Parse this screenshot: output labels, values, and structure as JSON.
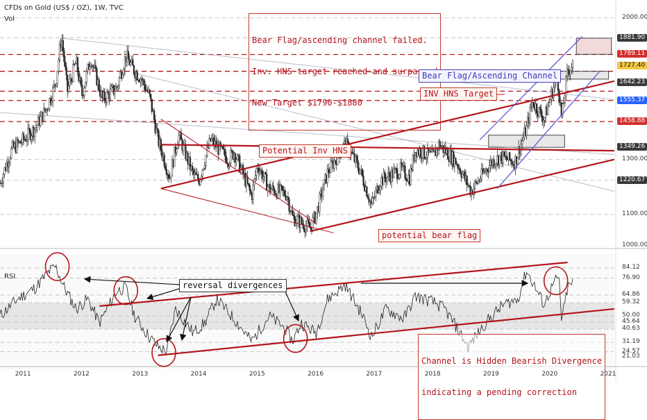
{
  "header": {
    "title": "CFDs on Gold (US$ / OZ), 1W, TVC",
    "vol_label": "Vol",
    "rsi_label": "RSI"
  },
  "colors": {
    "candle": "#2b2b2b",
    "trend": "#b3141b",
    "blue_channel": "#5a5ad6",
    "red_badge": "#d32f2f",
    "blue_badge": "#2962ff",
    "yellow_badge": "#f5c842",
    "grey_badge": "#3a3a3a"
  },
  "annotations": {
    "bear_flag_failed": [
      "Bear Flag/ascending channel failed.",
      "Inv. HNS target reached and surpassed",
      "New Target $1790-$1880"
    ],
    "bear_flag_channel": "Bear Flag/Ascending Channel",
    "inv_hns_target": "INV HNS Target",
    "potential_inv_hns": "Potential Inv HNS",
    "potential_bear_flag": "potential bear flag",
    "reversal_divergences": "reversal divergences",
    "hidden_bearish": [
      "Channel is Hidden Bearish Divergence",
      "indicating a pending correction"
    ]
  },
  "chart_data": [
    {
      "type": "candlestick",
      "title": "CFDs on Gold (US$ / OZ), 1W, TVC",
      "x_range": [
        2010.6,
        2021.1
      ],
      "ylim": [
        1000,
        2050
      ],
      "price_ticks": [
        "2000.00",
        "1881.90",
        "1789.11",
        "1727.40",
        "1642.23",
        "1555.37",
        "1458.88",
        "1349.26",
        "1300.00",
        "1220.67",
        "1100.00",
        "1000.00"
      ],
      "price_labels": [
        {
          "value": 1881.9,
          "text": "1881.90",
          "style": "grey"
        },
        {
          "value": 1789.11,
          "text": "1789.11",
          "style": "red"
        },
        {
          "value": 1727.4,
          "text": "1727.40",
          "style": "yellow"
        },
        {
          "value": 1642.23,
          "text": "1642.23",
          "style": "grey"
        },
        {
          "value": 1555.37,
          "text": "1555.37",
          "style": "blue"
        },
        {
          "value": 1458.88,
          "text": "1458.88",
          "style": "red"
        },
        {
          "value": 1349.26,
          "text": "1349.26",
          "style": "grey"
        },
        {
          "value": 1220.67,
          "text": "1220.67",
          "style": "grey"
        }
      ],
      "horizontal_levels": [
        1789.11,
        1555.37,
        1458.88,
        1600,
        1700
      ],
      "price_path": [
        [
          2010.6,
          1210
        ],
        [
          2010.8,
          1340
        ],
        [
          2011.0,
          1380
        ],
        [
          2011.2,
          1430
        ],
        [
          2011.4,
          1520
        ],
        [
          2011.55,
          1640
        ],
        [
          2011.65,
          1890
        ],
        [
          2011.75,
          1600
        ],
        [
          2011.9,
          1750
        ],
        [
          2012.0,
          1580
        ],
        [
          2012.15,
          1770
        ],
        [
          2012.35,
          1560
        ],
        [
          2012.6,
          1620
        ],
        [
          2012.75,
          1780
        ],
        [
          2012.9,
          1700
        ],
        [
          2013.0,
          1670
        ],
        [
          2013.15,
          1580
        ],
        [
          2013.3,
          1380
        ],
        [
          2013.5,
          1230
        ],
        [
          2013.65,
          1400
        ],
        [
          2013.9,
          1240
        ],
        [
          2014.0,
          1220
        ],
        [
          2014.2,
          1380
        ],
        [
          2014.5,
          1300
        ],
        [
          2014.6,
          1330
        ],
        [
          2014.9,
          1160
        ],
        [
          2015.0,
          1280
        ],
        [
          2015.2,
          1190
        ],
        [
          2015.5,
          1170
        ],
        [
          2015.6,
          1090
        ],
        [
          2015.9,
          1055
        ],
        [
          2016.0,
          1100
        ],
        [
          2016.2,
          1250
        ],
        [
          2016.5,
          1365
        ],
        [
          2016.75,
          1260
        ],
        [
          2016.95,
          1130
        ],
        [
          2017.1,
          1220
        ],
        [
          2017.45,
          1260
        ],
        [
          2017.6,
          1230
        ],
        [
          2017.7,
          1340
        ],
        [
          2018.0,
          1310
        ],
        [
          2018.1,
          1360
        ],
        [
          2018.4,
          1290
        ],
        [
          2018.65,
          1180
        ],
        [
          2019.0,
          1290
        ],
        [
          2019.15,
          1310
        ],
        [
          2019.4,
          1290
        ],
        [
          2019.6,
          1430
        ],
        [
          2019.7,
          1550
        ],
        [
          2019.9,
          1470
        ],
        [
          2020.0,
          1560
        ],
        [
          2020.12,
          1680
        ],
        [
          2020.2,
          1470
        ],
        [
          2020.3,
          1700
        ],
        [
          2020.4,
          1740
        ]
      ],
      "lines": [
        {
          "name": "Potential Inv HNS neckline",
          "from": [
            2013.35,
            1360
          ],
          "to": [
            2021.1,
            1335
          ]
        },
        {
          "name": "upper trendline",
          "from": [
            2013.35,
            1190
          ],
          "to": [
            2021.1,
            1650
          ]
        },
        {
          "name": "lower trendline",
          "from": [
            2015.9,
            1045
          ],
          "to": [
            2021.1,
            1300
          ]
        },
        {
          "name": "descending channel top",
          "from": [
            2013.35,
            1470
          ],
          "to": [
            2016.0,
            1070
          ]
        },
        {
          "name": "descending channel bottom",
          "from": [
            2013.35,
            1190
          ],
          "to": [
            2016.3,
            1040
          ]
        },
        {
          "name": "bear flag upper",
          "from": [
            2018.8,
            1380
          ],
          "to": [
            2020.55,
            1890
          ]
        },
        {
          "name": "bear flag lower",
          "from": [
            2019.1,
            1190
          ],
          "to": [
            2020.85,
            1700
          ]
        }
      ],
      "boxes": [
        {
          "name": "new target zone",
          "x": [
            2020.45,
            2021.05
          ],
          "y": [
            1790,
            1880
          ]
        },
        {
          "name": "inv hns target zone",
          "x": [
            2019.25,
            2021.0
          ],
          "y": [
            1660,
            1700
          ]
        },
        {
          "name": "inv hns zone",
          "x": [
            2018.95,
            2020.25
          ],
          "y": [
            1349,
            1400
          ]
        }
      ]
    },
    {
      "type": "line",
      "title": "RSI",
      "x_range": [
        2010.6,
        2021.1
      ],
      "ylim": [
        18,
        88
      ],
      "rsi_ticks": [
        "84.12",
        "76.90",
        "64.86",
        "59.32",
        "50.00",
        "45.64",
        "40.63",
        "31.19",
        "24.57",
        "21.03"
      ],
      "rsi_path": [
        [
          2010.6,
          50
        ],
        [
          2010.9,
          62
        ],
        [
          2011.2,
          70
        ],
        [
          2011.45,
          82
        ],
        [
          2011.55,
          85
        ],
        [
          2011.7,
          70
        ],
        [
          2011.9,
          55
        ],
        [
          2012.1,
          62
        ],
        [
          2012.3,
          45
        ],
        [
          2012.6,
          68
        ],
        [
          2012.75,
          70
        ],
        [
          2012.9,
          50
        ],
        [
          2013.1,
          38
        ],
        [
          2013.3,
          28
        ],
        [
          2013.45,
          25
        ],
        [
          2013.6,
          55
        ],
        [
          2013.9,
          38
        ],
        [
          2014.1,
          45
        ],
        [
          2014.3,
          62
        ],
        [
          2014.6,
          48
        ],
        [
          2014.9,
          32
        ],
        [
          2015.2,
          50
        ],
        [
          2015.45,
          42
        ],
        [
          2015.6,
          32
        ],
        [
          2015.75,
          45
        ],
        [
          2016.0,
          38
        ],
        [
          2016.2,
          62
        ],
        [
          2016.5,
          72
        ],
        [
          2016.8,
          50
        ],
        [
          2016.95,
          35
        ],
        [
          2017.2,
          55
        ],
        [
          2017.5,
          48
        ],
        [
          2017.7,
          64
        ],
        [
          2018.0,
          60
        ],
        [
          2018.2,
          55
        ],
        [
          2018.4,
          42
        ],
        [
          2018.6,
          28
        ],
        [
          2018.9,
          45
        ],
        [
          2019.2,
          58
        ],
        [
          2019.45,
          62
        ],
        [
          2019.6,
          82
        ],
        [
          2019.75,
          70
        ],
        [
          2019.9,
          58
        ],
        [
          2020.05,
          72
        ],
        [
          2020.15,
          78
        ],
        [
          2020.2,
          46
        ],
        [
          2020.3,
          70
        ],
        [
          2020.4,
          74
        ]
      ],
      "lines": [
        {
          "name": "upper channel",
          "from": [
            2012.3,
            57
          ],
          "to": [
            2020.3,
            88
          ]
        },
        {
          "name": "lower channel",
          "from": [
            2013.3,
            22
          ],
          "to": [
            2021.1,
            55
          ]
        }
      ],
      "circles": [
        [
          2011.58,
          85
        ],
        [
          2012.75,
          68
        ],
        [
          2013.4,
          24
        ],
        [
          2015.65,
          34
        ],
        [
          2020.1,
          75
        ]
      ]
    }
  ],
  "x_ticks": [
    "2011",
    "2012",
    "2013",
    "2014",
    "2015",
    "2016",
    "2017",
    "2018",
    "2019",
    "2020",
    "2021"
  ]
}
